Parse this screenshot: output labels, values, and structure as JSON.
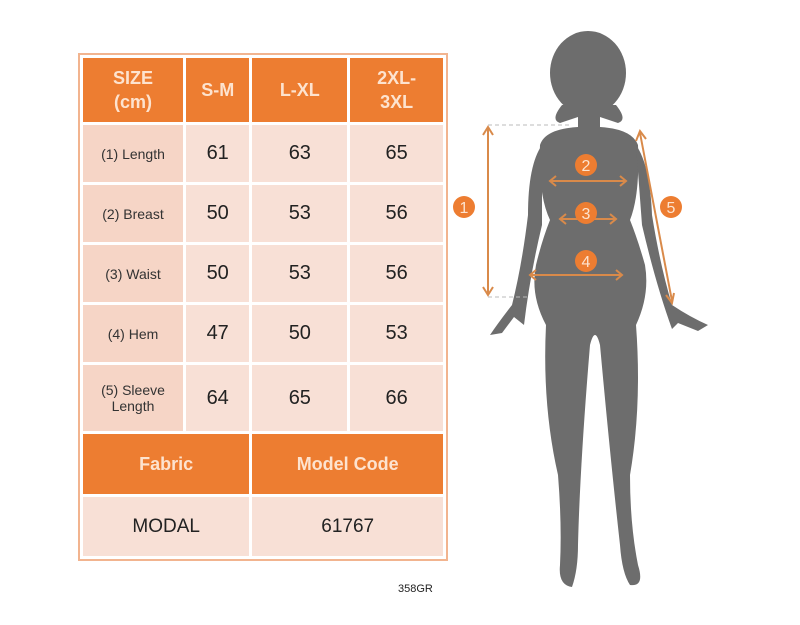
{
  "table": {
    "headers": [
      "SIZE\n(cm)",
      "S-M",
      "L-XL",
      "2XL-\n3XL"
    ],
    "rows": [
      {
        "label": "(1) Length",
        "values": [
          "61",
          "63",
          "65"
        ]
      },
      {
        "label": "(2) Breast",
        "values": [
          "50",
          "53",
          "56"
        ]
      },
      {
        "label": "(3) Waist",
        "values": [
          "50",
          "53",
          "56"
        ]
      },
      {
        "label": "(4) Hem",
        "values": [
          "47",
          "50",
          "53"
        ]
      },
      {
        "label": "(5) Sleeve Length",
        "values": [
          "64",
          "65",
          "66"
        ]
      }
    ],
    "fabric_label": "Fabric",
    "model_code_label": "Model Code",
    "fabric": "MODAL",
    "model_code": "61767"
  },
  "code": "358GR",
  "figure": {
    "markers": [
      "1",
      "2",
      "3",
      "4",
      "5"
    ]
  },
  "colors": {
    "accent": "#ed7d31",
    "cell": "#f8e0d6",
    "silhouette": "#6d6d6d"
  }
}
